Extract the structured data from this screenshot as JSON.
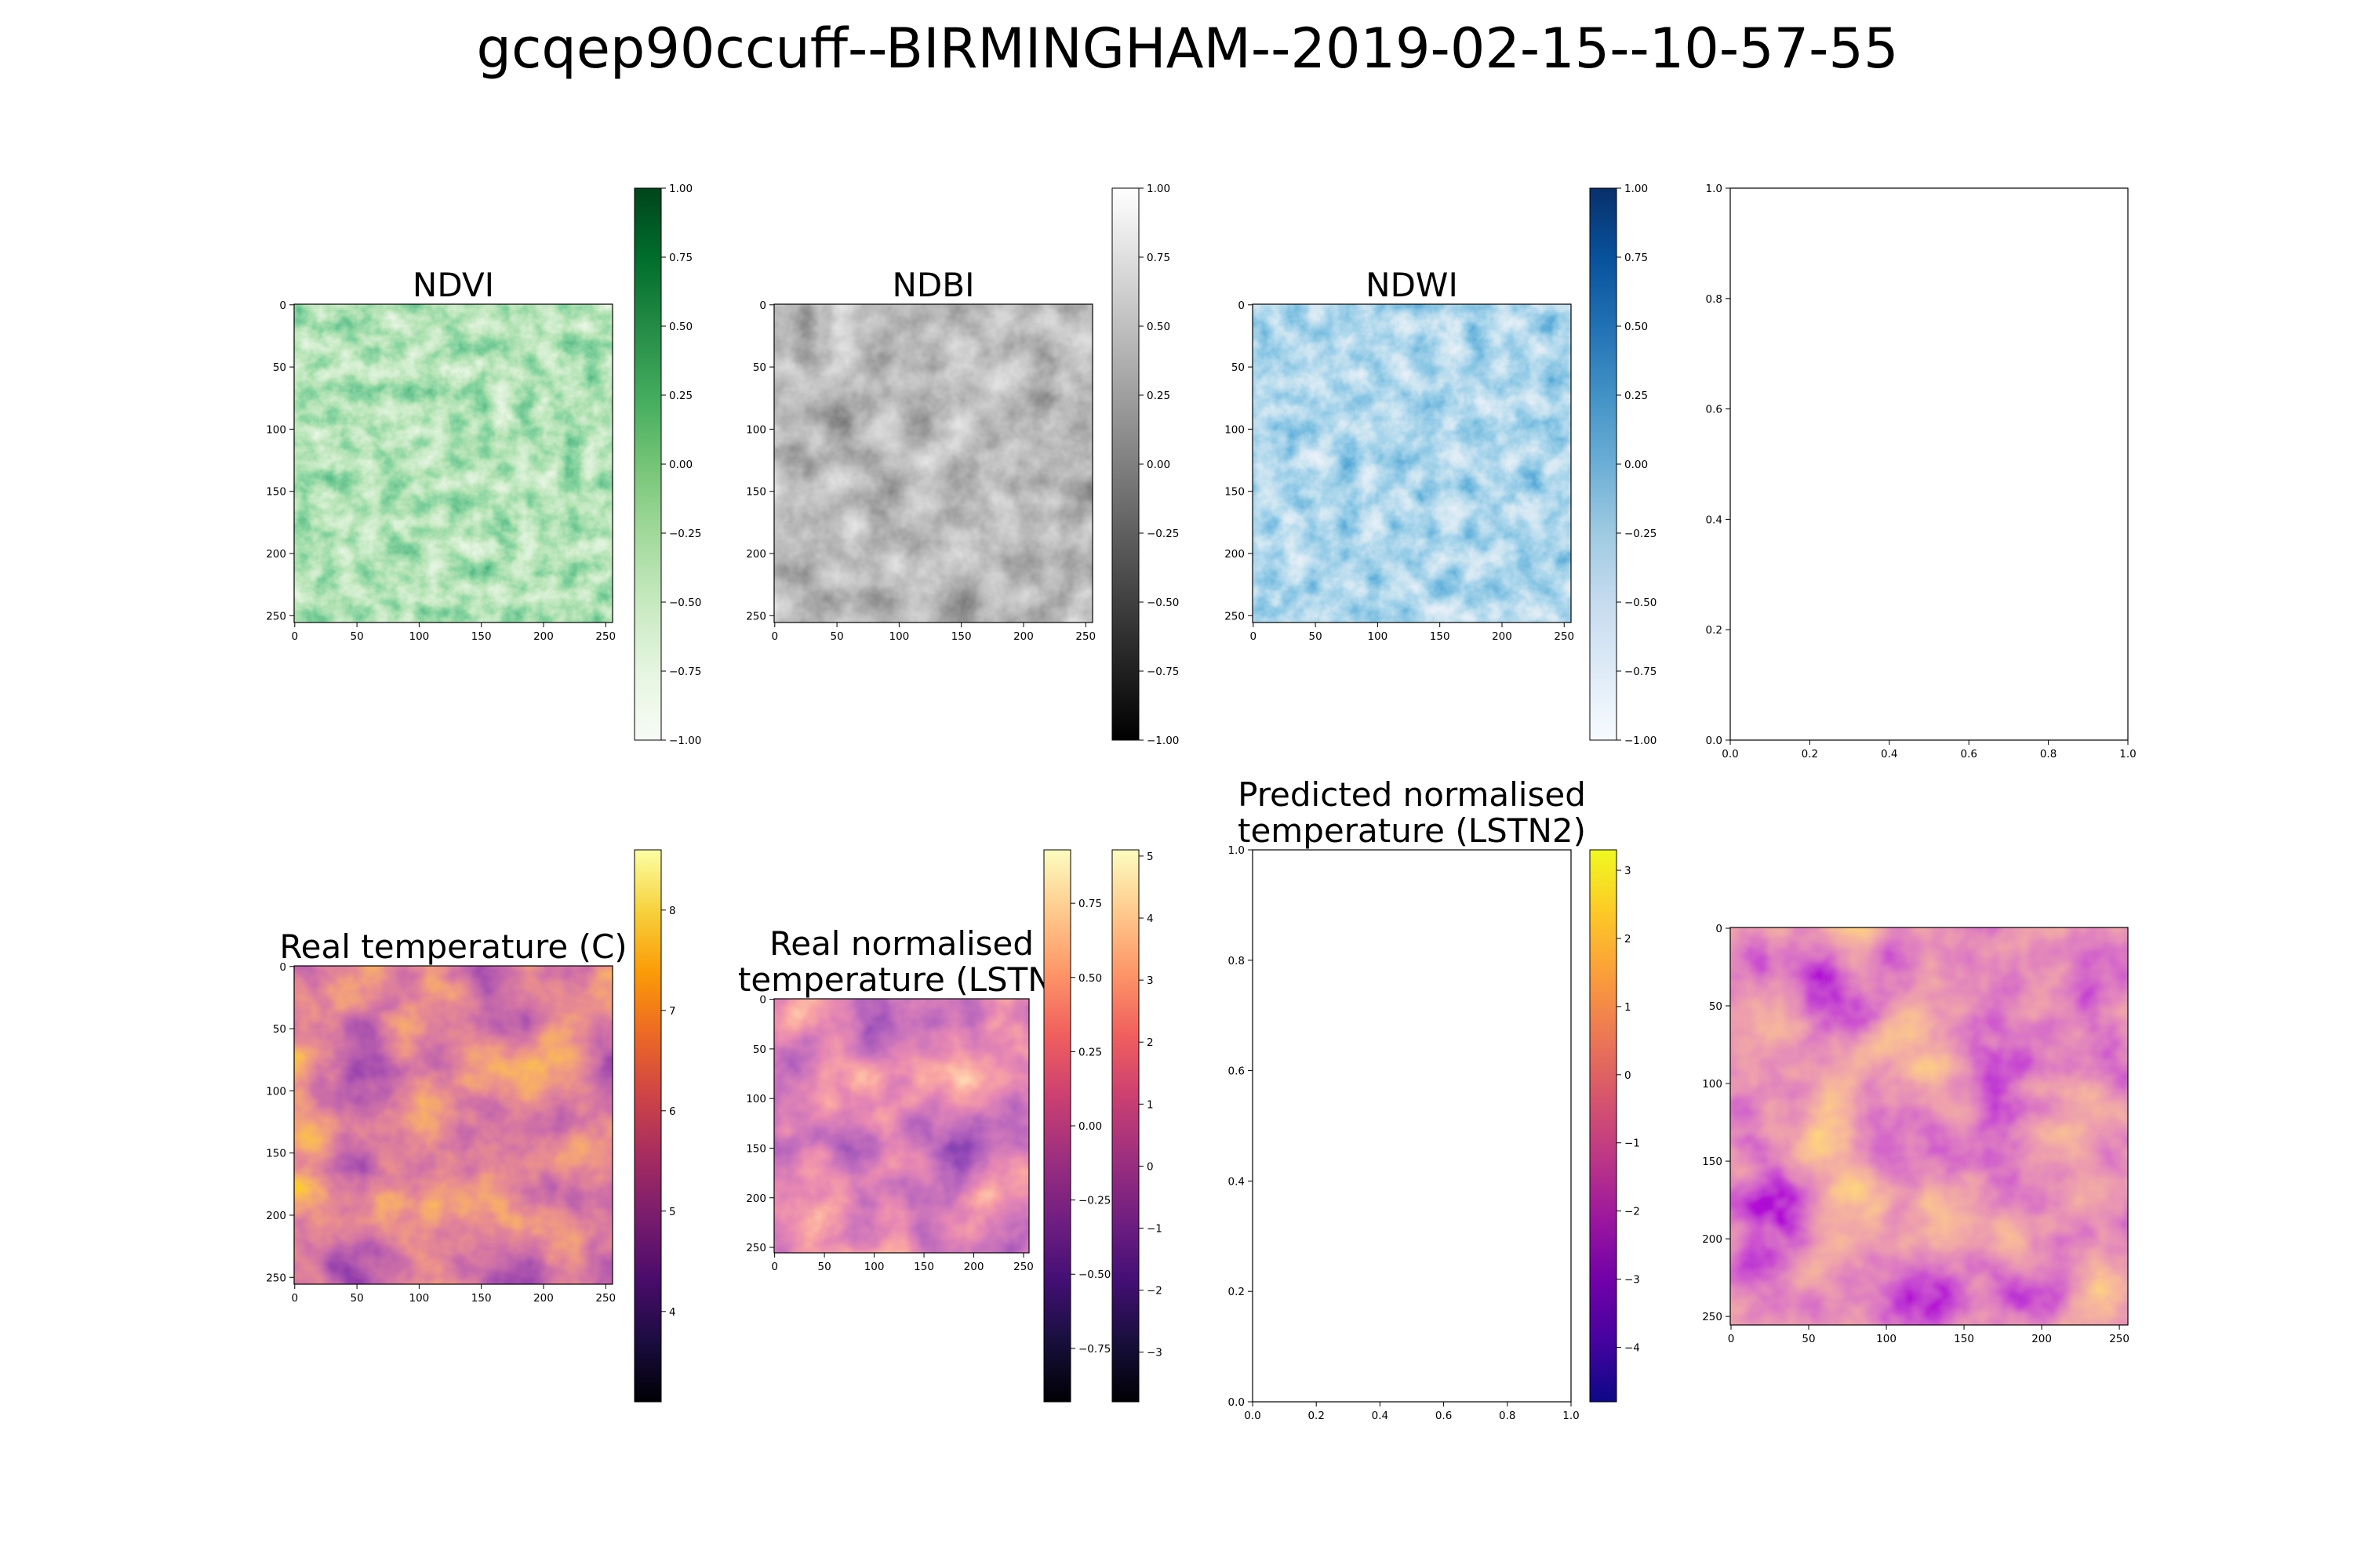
{
  "suptitle": "gcqep90ccuff--BIRMINGHAM--2019-02-15--10-57-55",
  "chart_data": [
    {
      "type": "heatmap",
      "title": "NDVI",
      "colormap": "Greens",
      "xticks": [
        "0",
        "50",
        "100",
        "150",
        "200",
        "250"
      ],
      "yticks": [
        "0",
        "50",
        "100",
        "150",
        "200",
        "250"
      ],
      "xlim": [
        0,
        256
      ],
      "ylim": [
        256,
        0
      ],
      "colorbar": {
        "range": [
          -1.0,
          1.0
        ],
        "ticks": [
          "1.00",
          "0.75",
          "0.50",
          "0.25",
          "0.00",
          "−0.25",
          "−0.50",
          "−0.75",
          "−1.00"
        ]
      }
    },
    {
      "type": "heatmap",
      "title": "NDBI",
      "colormap": "gray",
      "xticks": [
        "0",
        "50",
        "100",
        "150",
        "200",
        "250"
      ],
      "yticks": [
        "0",
        "50",
        "100",
        "150",
        "200",
        "250"
      ],
      "xlim": [
        0,
        256
      ],
      "ylim": [
        256,
        0
      ],
      "colorbar": {
        "range": [
          -1.0,
          1.0
        ],
        "ticks": [
          "1.00",
          "0.75",
          "0.50",
          "0.25",
          "0.00",
          "−0.25",
          "−0.50",
          "−0.75",
          "−1.00"
        ]
      }
    },
    {
      "type": "heatmap",
      "title": "NDWI",
      "colormap": "Blues",
      "xticks": [
        "0",
        "50",
        "100",
        "150",
        "200",
        "250"
      ],
      "yticks": [
        "0",
        "50",
        "100",
        "150",
        "200",
        "250"
      ],
      "xlim": [
        0,
        256
      ],
      "ylim": [
        256,
        0
      ],
      "colorbar": {
        "range": [
          -1.0,
          1.0
        ],
        "ticks": [
          "1.00",
          "0.75",
          "0.50",
          "0.25",
          "0.00",
          "−0.25",
          "−0.50",
          "−0.75",
          "−1.00"
        ]
      }
    },
    {
      "type": "empty",
      "title": "",
      "xticks": [
        "0.0",
        "0.2",
        "0.4",
        "0.6",
        "0.8",
        "1.0"
      ],
      "yticks": [
        "1.0",
        "0.8",
        "0.6",
        "0.4",
        "0.2",
        "0.0"
      ],
      "xlim": [
        0,
        1
      ],
      "ylim": [
        0,
        1
      ]
    },
    {
      "type": "heatmap",
      "title": "Real temperature (C)",
      "colormap": "inferno",
      "xticks": [
        "0",
        "50",
        "100",
        "150",
        "200",
        "250"
      ],
      "yticks": [
        "0",
        "50",
        "100",
        "150",
        "200",
        "250"
      ],
      "xlim": [
        0,
        256
      ],
      "ylim": [
        256,
        0
      ],
      "colorbar": {
        "range": [
          3.1,
          8.6
        ],
        "ticks": [
          "8",
          "7",
          "6",
          "5",
          "4"
        ]
      }
    },
    {
      "type": "heatmap",
      "title": "Real normalised temperature (LSTN)",
      "title_lines": [
        "Real normalised",
        "temperature (LSTN)"
      ],
      "colormap": "magma",
      "xticks": [
        "0",
        "50",
        "100",
        "150",
        "200",
        "250"
      ],
      "yticks": [
        "0",
        "50",
        "100",
        "150",
        "200",
        "250"
      ],
      "xlim": [
        0,
        256
      ],
      "ylim": [
        256,
        0
      ],
      "colorbar": {
        "range": [
          -0.93,
          0.93
        ],
        "ticks": [
          "0.75",
          "0.50",
          "0.25",
          "0.00",
          "−0.25",
          "−0.50",
          "−0.75"
        ]
      },
      "extra_colorbar": {
        "colormap": "magma",
        "range": [
          -3.8,
          5.1
        ],
        "ticks": [
          "5",
          "4",
          "3",
          "2",
          "1",
          "0",
          "−1",
          "−2",
          "−3"
        ]
      }
    },
    {
      "type": "empty",
      "title": "Predicted normalised temperature (LSTN2)",
      "title_lines": [
        "Predicted normalised",
        "temperature (LSTN2)"
      ],
      "xticks": [
        "0.0",
        "0.2",
        "0.4",
        "0.6",
        "0.8",
        "1.0"
      ],
      "yticks": [
        "1.0",
        "0.8",
        "0.6",
        "0.4",
        "0.2",
        "0.0"
      ],
      "xlim": [
        0,
        1
      ],
      "ylim": [
        0,
        1
      ],
      "colorbar": {
        "colormap": "plasma",
        "range": [
          -4.8,
          3.3
        ],
        "ticks": [
          "3",
          "2",
          "1",
          "0",
          "−1",
          "−2",
          "−3",
          "−4"
        ]
      }
    },
    {
      "type": "heatmap",
      "title": "",
      "colormap": "plasma",
      "xticks": [
        "0",
        "50",
        "100",
        "150",
        "200",
        "250"
      ],
      "yticks": [
        "0",
        "50",
        "100",
        "150",
        "200",
        "250"
      ],
      "xlim": [
        0,
        256
      ],
      "ylim": [
        256,
        0
      ]
    }
  ]
}
